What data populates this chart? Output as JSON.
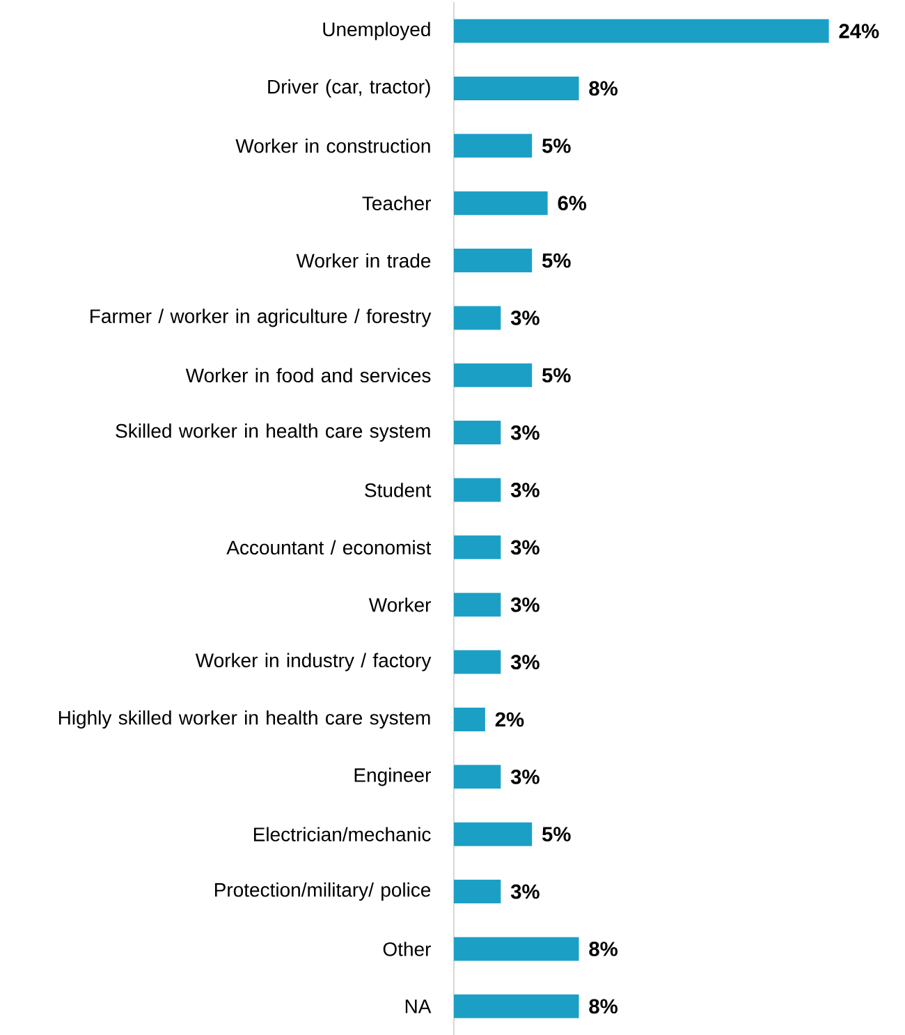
{
  "chart_data": {
    "type": "bar",
    "orientation": "horizontal",
    "categories": [
      "Unemployed",
      "Driver (car, tractor)",
      "Worker in construction",
      "Teacher",
      "Worker in trade",
      "Farmer / worker in agriculture / forestry",
      "Worker in food and services",
      "Skilled worker in health care system",
      "Student",
      "Accountant / economist",
      "Worker",
      "Worker in industry / factory",
      "Highly skilled worker in health care system",
      "Engineer",
      "Electrician/mechanic",
      "Protection/military/ police",
      "Other",
      "NA"
    ],
    "values": [
      24,
      8,
      5,
      6,
      5,
      3,
      5,
      3,
      3,
      3,
      3,
      3,
      2,
      3,
      5,
      3,
      8,
      8
    ],
    "value_labels": [
      "24%",
      "8%",
      "5%",
      "6%",
      "5%",
      "3%",
      "5%",
      "3%",
      "3%",
      "3%",
      "3%",
      "3%",
      "2%",
      "3%",
      "5%",
      "3%",
      "8%",
      "8%"
    ],
    "color": "#1c9fc5"
  }
}
